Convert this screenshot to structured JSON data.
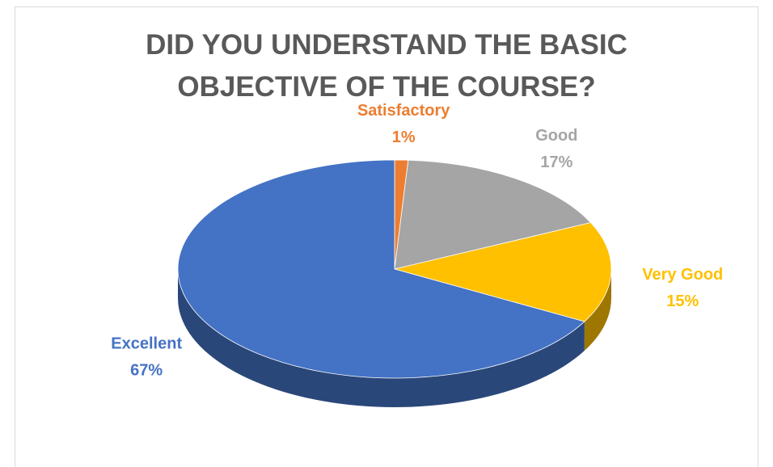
{
  "chart_data": {
    "type": "pie",
    "title": "DID YOU UNDERSTAND THE BASIC OBJECTIVE OF THE COURSE?",
    "categories": [
      "Satisfactory",
      "Good",
      "Very Good",
      "Excellent"
    ],
    "values": [
      1,
      17,
      15,
      67
    ],
    "value_labels": [
      "1%",
      "17%",
      "15%",
      "67%"
    ],
    "colors": [
      "#ed7d31",
      "#a5a5a5",
      "#ffc000",
      "#4472c4"
    ]
  }
}
